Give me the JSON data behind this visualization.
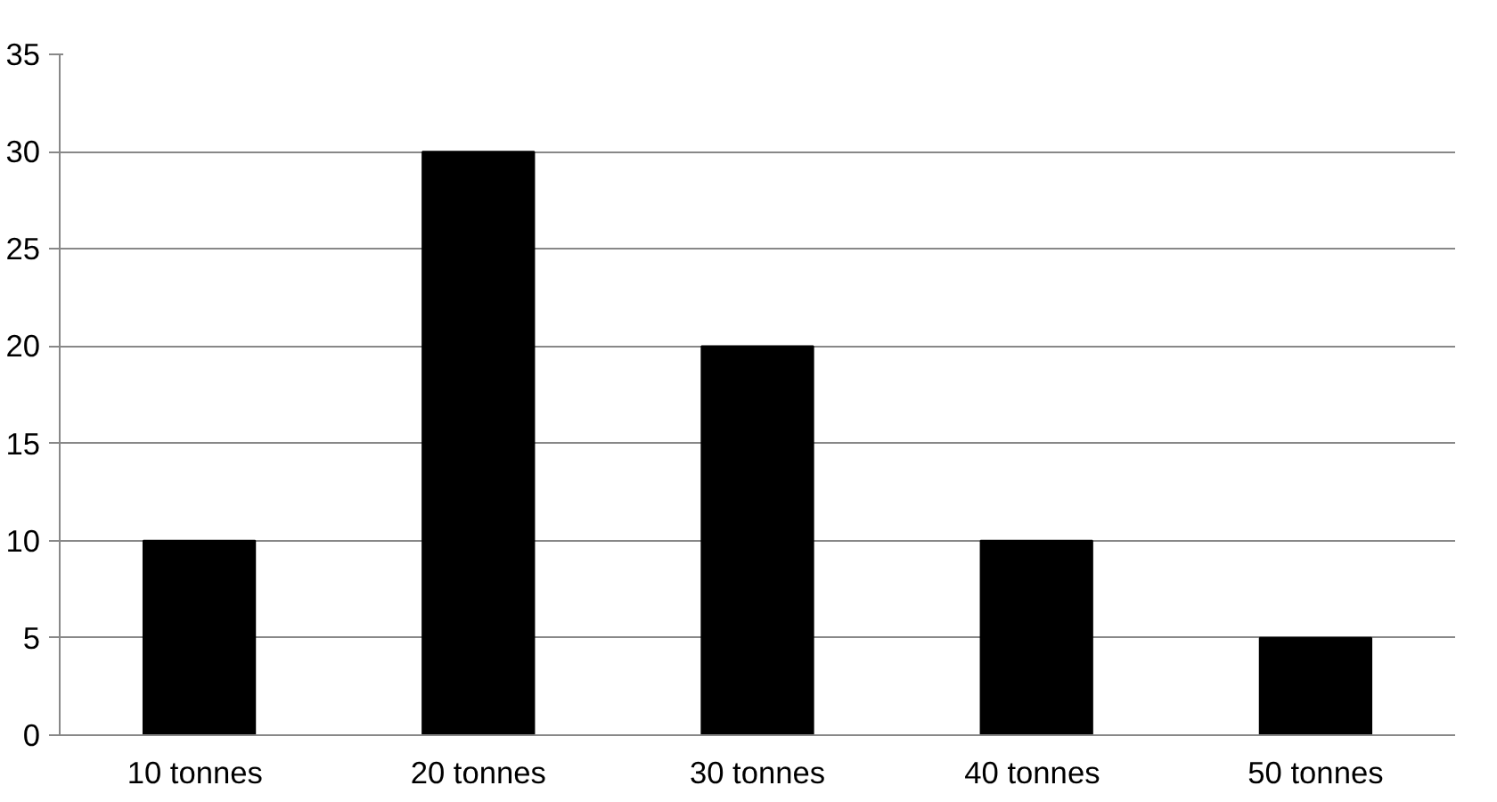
{
  "chart_data": {
    "type": "bar",
    "categories": [
      "10  tonnes",
      "20 tonnes",
      "30 tonnes",
      "40  tonnes",
      "50 tonnes"
    ],
    "values": [
      10,
      30,
      20,
      10,
      5
    ],
    "color": "#000000",
    "ylim": [
      0,
      35
    ],
    "yticks": [
      0,
      5,
      10,
      15,
      20,
      25,
      30,
      35
    ],
    "grid": "y"
  }
}
